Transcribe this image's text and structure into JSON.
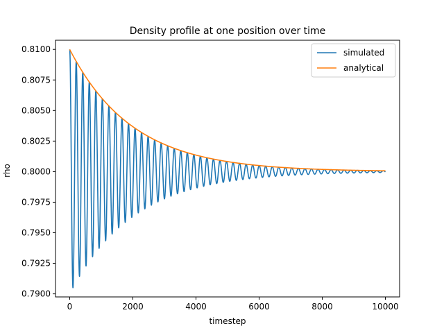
{
  "chart_data": {
    "type": "line",
    "title": "Density profile at one position over time",
    "xlabel": "timestep",
    "ylabel": "rho",
    "xlim": [
      -450,
      10450
    ],
    "ylim": [
      0.78975,
      0.81075
    ],
    "xticks": [
      0,
      2000,
      4000,
      6000,
      8000,
      10000
    ],
    "xtick_labels": [
      "0",
      "2000",
      "4000",
      "6000",
      "8000",
      "10000"
    ],
    "yticks": [
      0.79,
      0.7925,
      0.795,
      0.7975,
      0.8,
      0.8025,
      0.805,
      0.8075,
      0.81
    ],
    "ytick_labels": [
      "0.7900",
      "0.7925",
      "0.7950",
      "0.7975",
      "0.8000",
      "0.8025",
      "0.8050",
      "0.8075",
      "0.8100"
    ],
    "grid": false,
    "legend_position": "top-right",
    "series": [
      {
        "name": "simulated",
        "color": "#1f77b4",
        "model": "damped_cosine",
        "baseline": 0.8,
        "amplitude": 0.01,
        "decay_time": 2000,
        "period": 207,
        "x_range": [
          0,
          10000
        ]
      },
      {
        "name": "analytical",
        "color": "#ff7f0e",
        "model": "exponential_envelope",
        "baseline": 0.8,
        "amplitude": 0.01,
        "decay_time": 2000,
        "x_range": [
          0,
          10000
        ]
      }
    ]
  }
}
